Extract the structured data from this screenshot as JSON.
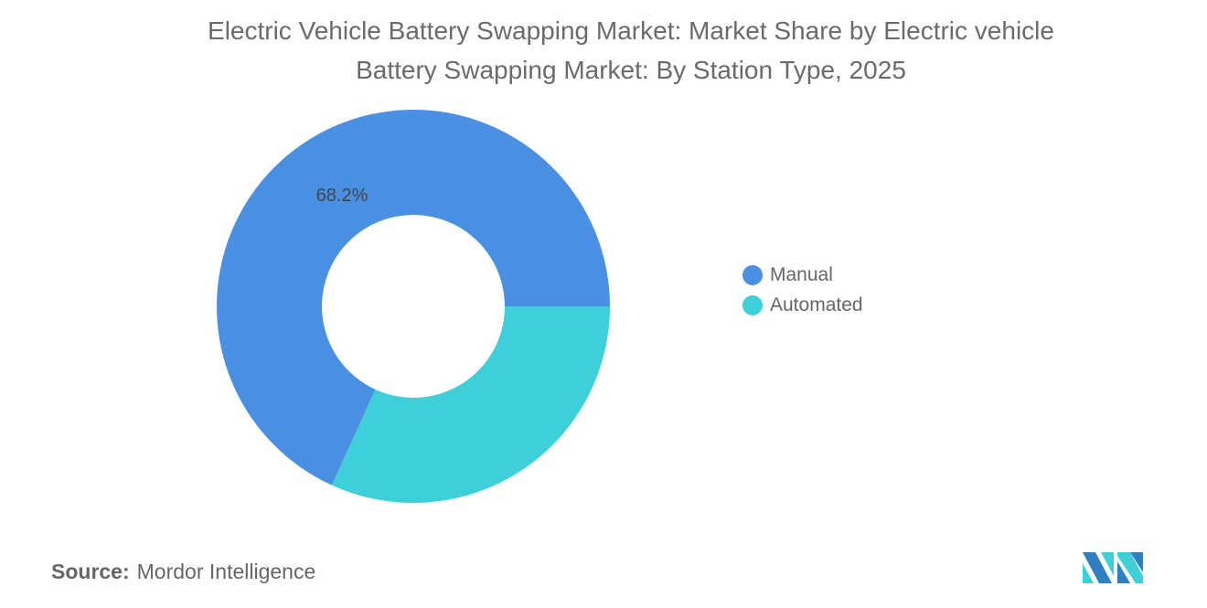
{
  "chart_data": {
    "type": "pie",
    "variant": "donut",
    "title_line1": "Electric Vehicle Battery Swapping Market: Market Share by Electric vehicle",
    "title_line2": "Battery Swapping Market: By Station Type, 2025",
    "categories": [
      "Manual",
      "Automated"
    ],
    "values": [
      68.2,
      31.8
    ],
    "colors": [
      "#4a90e2",
      "#3ecfd9"
    ],
    "data_labels": [
      "68.2%",
      ""
    ],
    "legend_position": "right"
  },
  "source": {
    "label": "Source:",
    "value": "Mordor Intelligence"
  },
  "logo": {
    "text": "MI"
  }
}
